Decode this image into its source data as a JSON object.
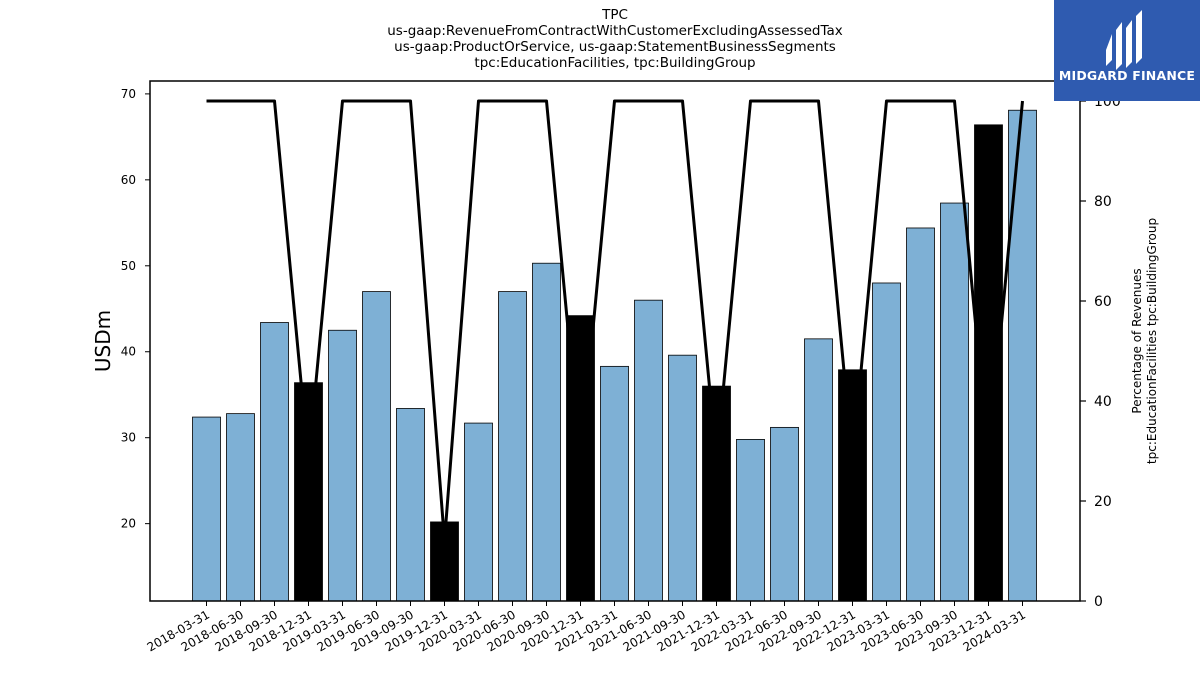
{
  "title_lines": [
    "TPC",
    "us-gaap:RevenueFromContractWithCustomerExcludingAssessedTax",
    "us-gaap:ProductOrService, us-gaap:StatementBusinessSegments",
    "tpc:EducationFacilities, tpc:BuildingGroup"
  ],
  "logo": {
    "text": "MIDGARD FINANCE",
    "color": "#2f5bb0"
  },
  "colors": {
    "bar_normal": "#7eb0d5",
    "bar_highlight": "#000000",
    "line": "#000000"
  },
  "chart_data": {
    "type": "bar",
    "ylabel": "USDm",
    "y2label_lines": [
      "Percentage of Revenues",
      "tpc:EducationFacilities tpc:BuildingGroup"
    ],
    "ylim": [
      11,
      71.5
    ],
    "y2lim": [
      0,
      104
    ],
    "yticks": [
      20,
      30,
      40,
      50,
      60,
      70
    ],
    "y2ticks": [
      0,
      20,
      40,
      60,
      80,
      100
    ],
    "categories": [
      "2018-03-31",
      "2018-06-30",
      "2018-09-30",
      "2018-12-31",
      "2019-03-31",
      "2019-06-30",
      "2019-09-30",
      "2019-12-31",
      "2020-03-31",
      "2020-06-30",
      "2020-09-30",
      "2020-12-31",
      "2021-03-31",
      "2021-06-30",
      "2021-09-30",
      "2021-12-31",
      "2022-03-31",
      "2022-06-30",
      "2022-09-30",
      "2022-12-31",
      "2023-03-31",
      "2023-06-30",
      "2023-09-30",
      "2023-12-31",
      "2024-03-31"
    ],
    "series": [
      {
        "type": "bar",
        "values": [
          32.4,
          32.8,
          43.4,
          36.4,
          42.5,
          47.0,
          33.4,
          20.2,
          31.7,
          47.0,
          50.3,
          44.2,
          38.3,
          46.0,
          39.6,
          36.0,
          29.8,
          31.2,
          41.5,
          37.9,
          48.0,
          54.4,
          57.3,
          66.4,
          68.1
        ],
        "highlight": [
          false,
          false,
          false,
          true,
          false,
          false,
          false,
          true,
          false,
          false,
          false,
          true,
          false,
          false,
          false,
          true,
          false,
          false,
          false,
          true,
          false,
          false,
          false,
          true,
          false
        ]
      },
      {
        "type": "line",
        "axis": "right",
        "values": [
          100,
          100,
          100,
          28,
          100,
          100,
          100,
          12,
          100,
          100,
          100,
          28,
          100,
          100,
          100,
          28,
          100,
          100,
          100,
          28,
          100,
          100,
          100,
          28,
          100
        ]
      }
    ]
  }
}
